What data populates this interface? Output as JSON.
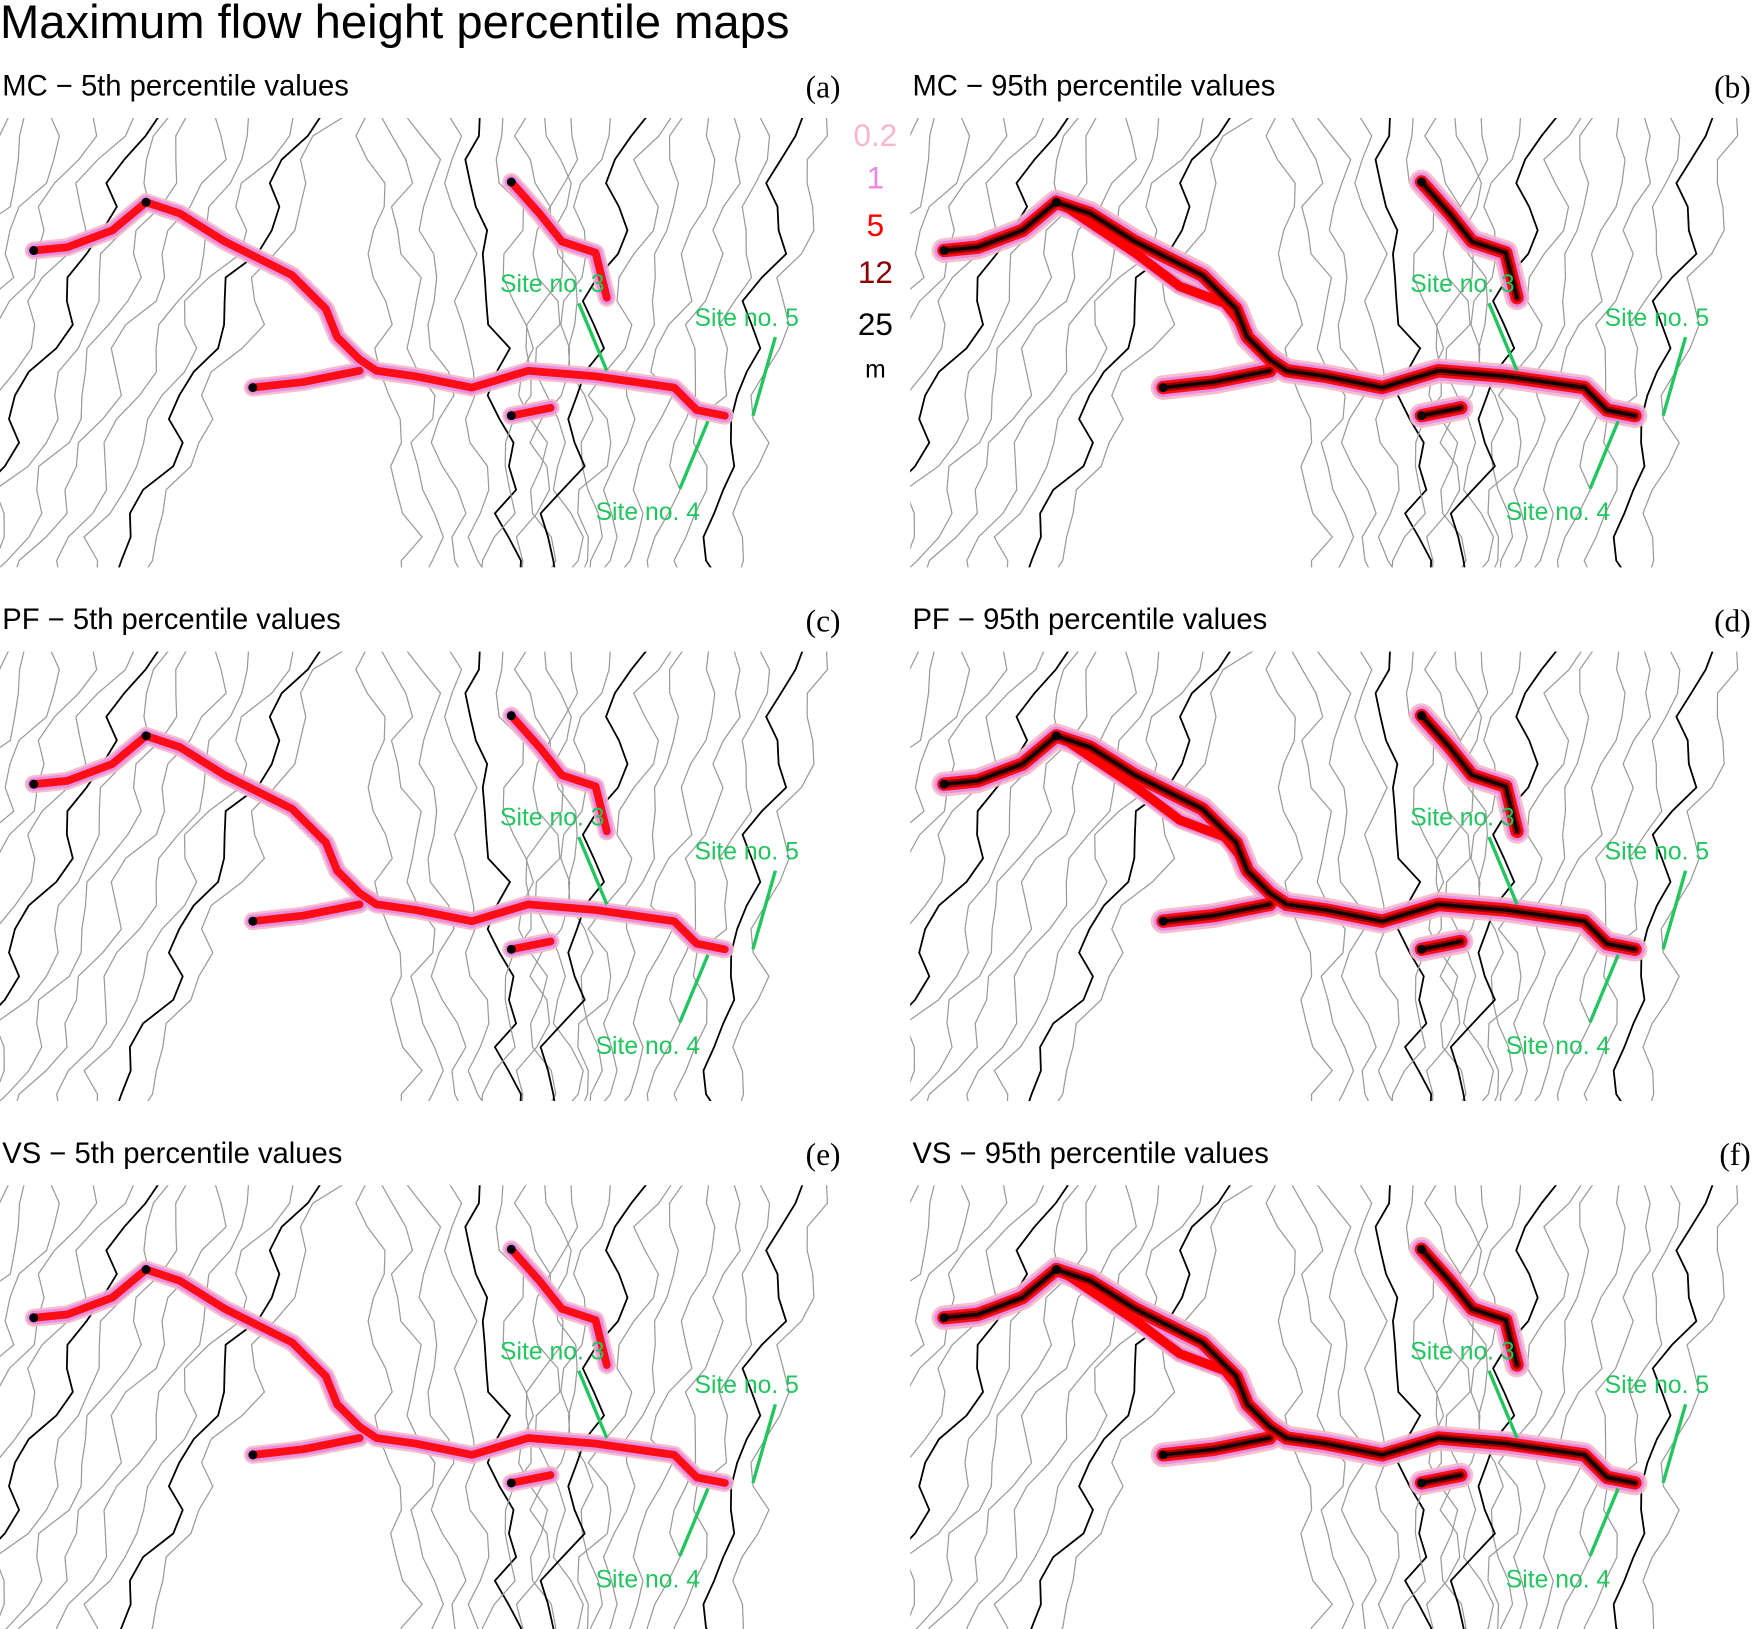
{
  "title": "Maximum flow height percentile maps",
  "legend": {
    "levels": [
      {
        "label": "0.2",
        "color": "#f6b8c8"
      },
      {
        "label": "1",
        "color": "#e58ae6"
      },
      {
        "label": "5",
        "color": "#ff0000"
      },
      {
        "label": "12",
        "color": "#8b0000"
      },
      {
        "label": "25",
        "color": "#000000"
      }
    ],
    "unit": "m"
  },
  "panels": [
    {
      "title": "MC − 5th percentile values",
      "letter": "(a)",
      "sites": [
        "Site no. 3",
        "Site no. 4",
        "Site no. 5"
      ]
    },
    {
      "title": "MC − 95th percentile values",
      "letter": "(b)",
      "sites": [
        "Site no. 3",
        "Site no. 4",
        "Site no. 5"
      ]
    },
    {
      "title": "PF − 5th percentile values",
      "letter": "(c)",
      "sites": [
        "Site no. 3",
        "Site no. 4",
        "Site no. 5"
      ]
    },
    {
      "title": "PF − 95th percentile values",
      "letter": "(d)",
      "sites": [
        "Site no. 3",
        "Site no. 4",
        "Site no. 5"
      ]
    },
    {
      "title": "VS − 5th percentile values",
      "letter": "(e)",
      "sites": [
        "Site no. 3",
        "Site no. 4",
        "Site no. 5"
      ]
    },
    {
      "title": "VS − 95th percentile values",
      "letter": "(f)",
      "sites": [
        "Site no. 3",
        "Site no. 4",
        "Site no. 5"
      ]
    }
  ]
}
